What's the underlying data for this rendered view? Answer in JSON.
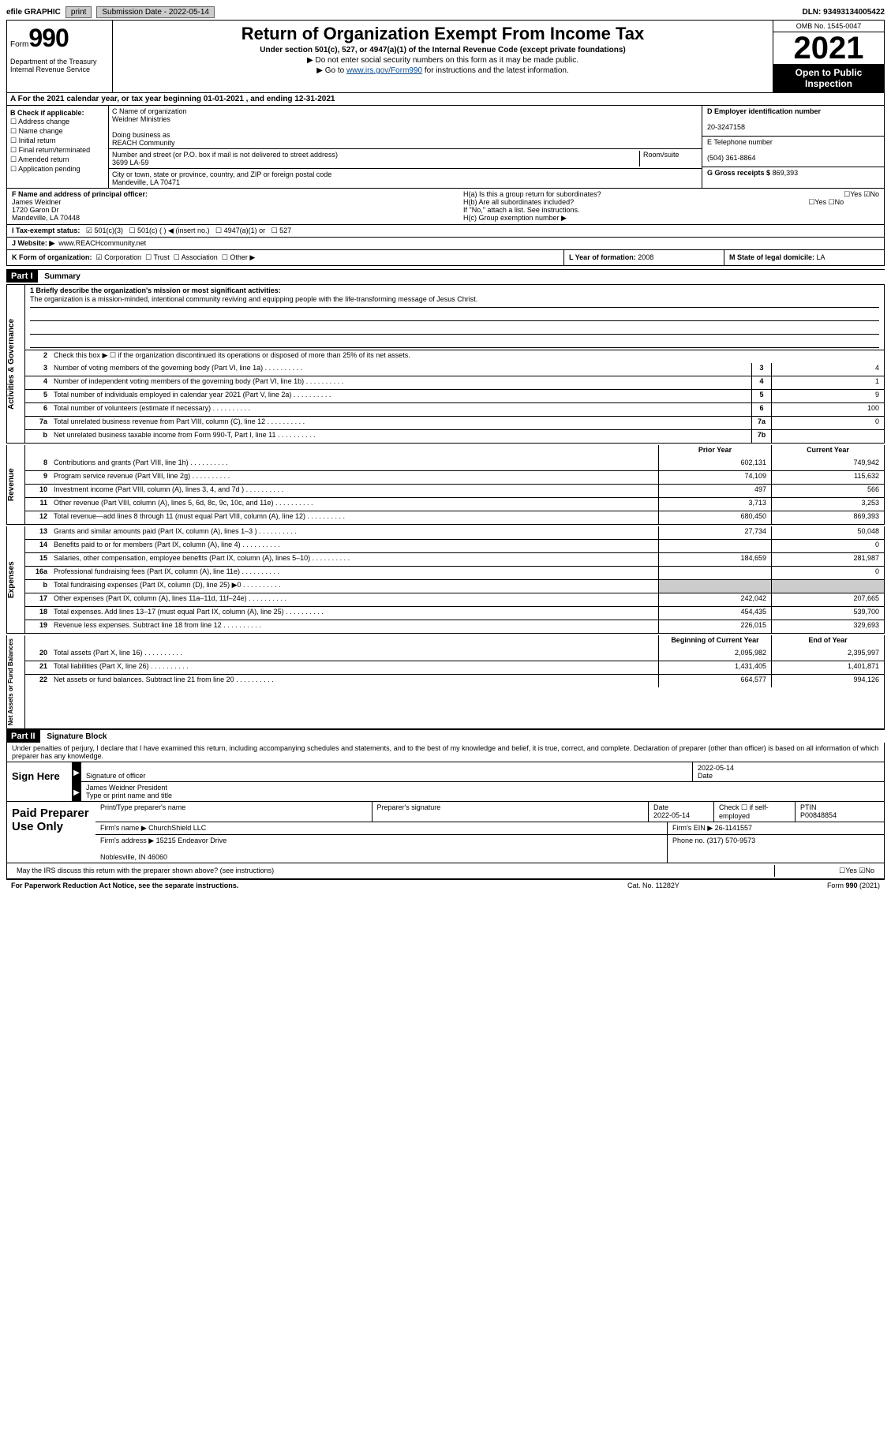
{
  "top": {
    "efile_label": "efile GRAPHIC",
    "print": "print",
    "sub_date_label": "Submission Date - 2022-05-14",
    "dln": "DLN: 93493134005422"
  },
  "header": {
    "form_label": "Form",
    "form_num": "990",
    "dept": "Department of the Treasury\nInternal Revenue Service",
    "title": "Return of Organization Exempt From Income Tax",
    "sub1": "Under section 501(c), 527, or 4947(a)(1) of the Internal Revenue Code (except private foundations)",
    "sub2": "Do not enter social security numbers on this form as it may be made public.",
    "sub3_prefix": "Go to ",
    "sub3_link": "www.irs.gov/Form990",
    "sub3_suffix": " for instructions and the latest information.",
    "omb": "OMB No. 1545-0047",
    "year": "2021",
    "open_pub": "Open to Public Inspection"
  },
  "row_a": {
    "text": "A For the 2021 calendar year, or tax year beginning 01-01-2021   , and ending 12-31-2021"
  },
  "col_b": {
    "label": "B Check if applicable:",
    "opts": [
      "Address change",
      "Name change",
      "Initial return",
      "Final return/terminated",
      "Amended return",
      "Application pending"
    ]
  },
  "col_c": {
    "name_label": "C Name of organization",
    "name": "Weidner Ministries",
    "dba_label": "Doing business as",
    "dba": "REACH Community",
    "street_label": "Number and street (or P.O. box if mail is not delivered to street address)",
    "street": "3699 LA-59",
    "room_label": "Room/suite",
    "city_label": "City or town, state or province, country, and ZIP or foreign postal code",
    "city": "Mandeville, LA  70471"
  },
  "col_d": {
    "ein_label": "D Employer identification number",
    "ein": "20-3247158",
    "phone_label": "E Telephone number",
    "phone": "(504) 361-8864",
    "gross_label": "G Gross receipts $",
    "gross": "869,393"
  },
  "row_f": {
    "label": "F  Name and address of principal officer:",
    "name": "James Weidner",
    "addr1": "1720 Garon Dr",
    "addr2": "Mandeville, LA  70448"
  },
  "row_h": {
    "ha": "H(a) Is this a group return for subordinates?",
    "hb": "H(b) Are all subordinates included?",
    "hb_note": "If \"No,\" attach a list. See instructions.",
    "hc": "H(c) Group exemption number ▶"
  },
  "row_i": {
    "label": "I Tax-exempt status:",
    "opts": [
      "501(c)(3)",
      "501(c) (  ) ◀ (insert no.)",
      "4947(a)(1) or",
      "527"
    ]
  },
  "row_j": {
    "label": "J Website: ▶",
    "val": "www.REACHcommunity.net"
  },
  "row_k": {
    "label": "K Form of organization:",
    "opts": [
      "Corporation",
      "Trust",
      "Association",
      "Other ▶"
    ],
    "l_label": "L Year of formation:",
    "l_val": "2008",
    "m_label": "M State of legal domicile:",
    "m_val": "LA"
  },
  "part1": {
    "header": "Part I",
    "title": "Summary",
    "mission_label": "1 Briefly describe the organization's mission or most significant activities:",
    "mission": "The organization is a mission-minded, intentional community reviving and equipping people with the life-transforming message of Jesus Christ.",
    "line2": "Check this box ▶ ☐ if the organization discontinued its operations or disposed of more than 25% of its net assets."
  },
  "sections": {
    "governance": "Activities & Governance",
    "revenue": "Revenue",
    "expenses": "Expenses",
    "netassets": "Net Assets or Fund Balances"
  },
  "gov_rows": [
    {
      "n": "3",
      "d": "Number of voting members of the governing body (Part VI, line 1a)",
      "bn": "3",
      "v": "4"
    },
    {
      "n": "4",
      "d": "Number of independent voting members of the governing body (Part VI, line 1b)",
      "bn": "4",
      "v": "1"
    },
    {
      "n": "5",
      "d": "Total number of individuals employed in calendar year 2021 (Part V, line 2a)",
      "bn": "5",
      "v": "9"
    },
    {
      "n": "6",
      "d": "Total number of volunteers (estimate if necessary)",
      "bn": "6",
      "v": "100"
    },
    {
      "n": "7a",
      "d": "Total unrelated business revenue from Part VIII, column (C), line 12",
      "bn": "7a",
      "v": "0"
    },
    {
      "n": "b",
      "d": "Net unrelated business taxable income from Form 990-T, Part I, line 11",
      "bn": "7b",
      "v": ""
    }
  ],
  "col_headers": {
    "prior": "Prior Year",
    "current": "Current Year",
    "boy": "Beginning of Current Year",
    "eoy": "End of Year"
  },
  "rev_rows": [
    {
      "n": "8",
      "d": "Contributions and grants (Part VIII, line 1h)",
      "p": "602,131",
      "c": "749,942"
    },
    {
      "n": "9",
      "d": "Program service revenue (Part VIII, line 2g)",
      "p": "74,109",
      "c": "115,632"
    },
    {
      "n": "10",
      "d": "Investment income (Part VIII, column (A), lines 3, 4, and 7d )",
      "p": "497",
      "c": "566"
    },
    {
      "n": "11",
      "d": "Other revenue (Part VIII, column (A), lines 5, 6d, 8c, 9c, 10c, and 11e)",
      "p": "3,713",
      "c": "3,253"
    },
    {
      "n": "12",
      "d": "Total revenue—add lines 8 through 11 (must equal Part VIII, column (A), line 12)",
      "p": "680,450",
      "c": "869,393"
    }
  ],
  "exp_rows": [
    {
      "n": "13",
      "d": "Grants and similar amounts paid (Part IX, column (A), lines 1–3 )",
      "p": "27,734",
      "c": "50,048"
    },
    {
      "n": "14",
      "d": "Benefits paid to or for members (Part IX, column (A), line 4)",
      "p": "",
      "c": "0"
    },
    {
      "n": "15",
      "d": "Salaries, other compensation, employee benefits (Part IX, column (A), lines 5–10)",
      "p": "184,659",
      "c": "281,987"
    },
    {
      "n": "16a",
      "d": "Professional fundraising fees (Part IX, column (A), line 11e)",
      "p": "",
      "c": "0"
    },
    {
      "n": "b",
      "d": "Total fundraising expenses (Part IX, column (D), line 25) ▶0",
      "p": "",
      "c": "",
      "grey": true
    },
    {
      "n": "17",
      "d": "Other expenses (Part IX, column (A), lines 11a–11d, 11f–24e)",
      "p": "242,042",
      "c": "207,665"
    },
    {
      "n": "18",
      "d": "Total expenses. Add lines 13–17 (must equal Part IX, column (A), line 25)",
      "p": "454,435",
      "c": "539,700"
    },
    {
      "n": "19",
      "d": "Revenue less expenses. Subtract line 18 from line 12",
      "p": "226,015",
      "c": "329,693"
    }
  ],
  "net_rows": [
    {
      "n": "20",
      "d": "Total assets (Part X, line 16)",
      "p": "2,095,982",
      "c": "2,395,997"
    },
    {
      "n": "21",
      "d": "Total liabilities (Part X, line 26)",
      "p": "1,431,405",
      "c": "1,401,871"
    },
    {
      "n": "22",
      "d": "Net assets or fund balances. Subtract line 21 from line 20",
      "p": "664,577",
      "c": "994,126"
    }
  ],
  "part2": {
    "header": "Part II",
    "title": "Signature Block",
    "declare": "Under penalties of perjury, I declare that I have examined this return, including accompanying schedules and statements, and to the best of my knowledge and belief, it is true, correct, and complete. Declaration of preparer (other than officer) is based on all information of which preparer has any knowledge."
  },
  "sign": {
    "here": "Sign Here",
    "sig_of": "Signature of officer",
    "date": "Date",
    "sig_date_val": "2022-05-14",
    "name_title": "James Weidner  President",
    "type_label": "Type or print name and title"
  },
  "prep": {
    "label": "Paid Preparer Use Only",
    "print_label": "Print/Type preparer's name",
    "sig_label": "Preparer's signature",
    "date_label": "Date",
    "date_val": "2022-05-14",
    "check_label": "Check ☐ if self-employed",
    "ptin_label": "PTIN",
    "ptin": "P00848854",
    "firm_name_label": "Firm's name  ▶",
    "firm_name": "ChurchShield LLC",
    "firm_ein_label": "Firm's EIN ▶",
    "firm_ein": "26-1141557",
    "firm_addr_label": "Firm's address ▶",
    "firm_addr": "15215 Endeavor Drive",
    "firm_addr2": "Noblesville, IN  46060",
    "phone_label": "Phone no.",
    "phone": "(317) 570-9573",
    "discuss": "May the IRS discuss this return with the preparer shown above? (see instructions)"
  },
  "footer": {
    "left": "For Paperwork Reduction Act Notice, see the separate instructions.",
    "mid": "Cat. No. 11282Y",
    "right": "Form 990 (2021)"
  }
}
